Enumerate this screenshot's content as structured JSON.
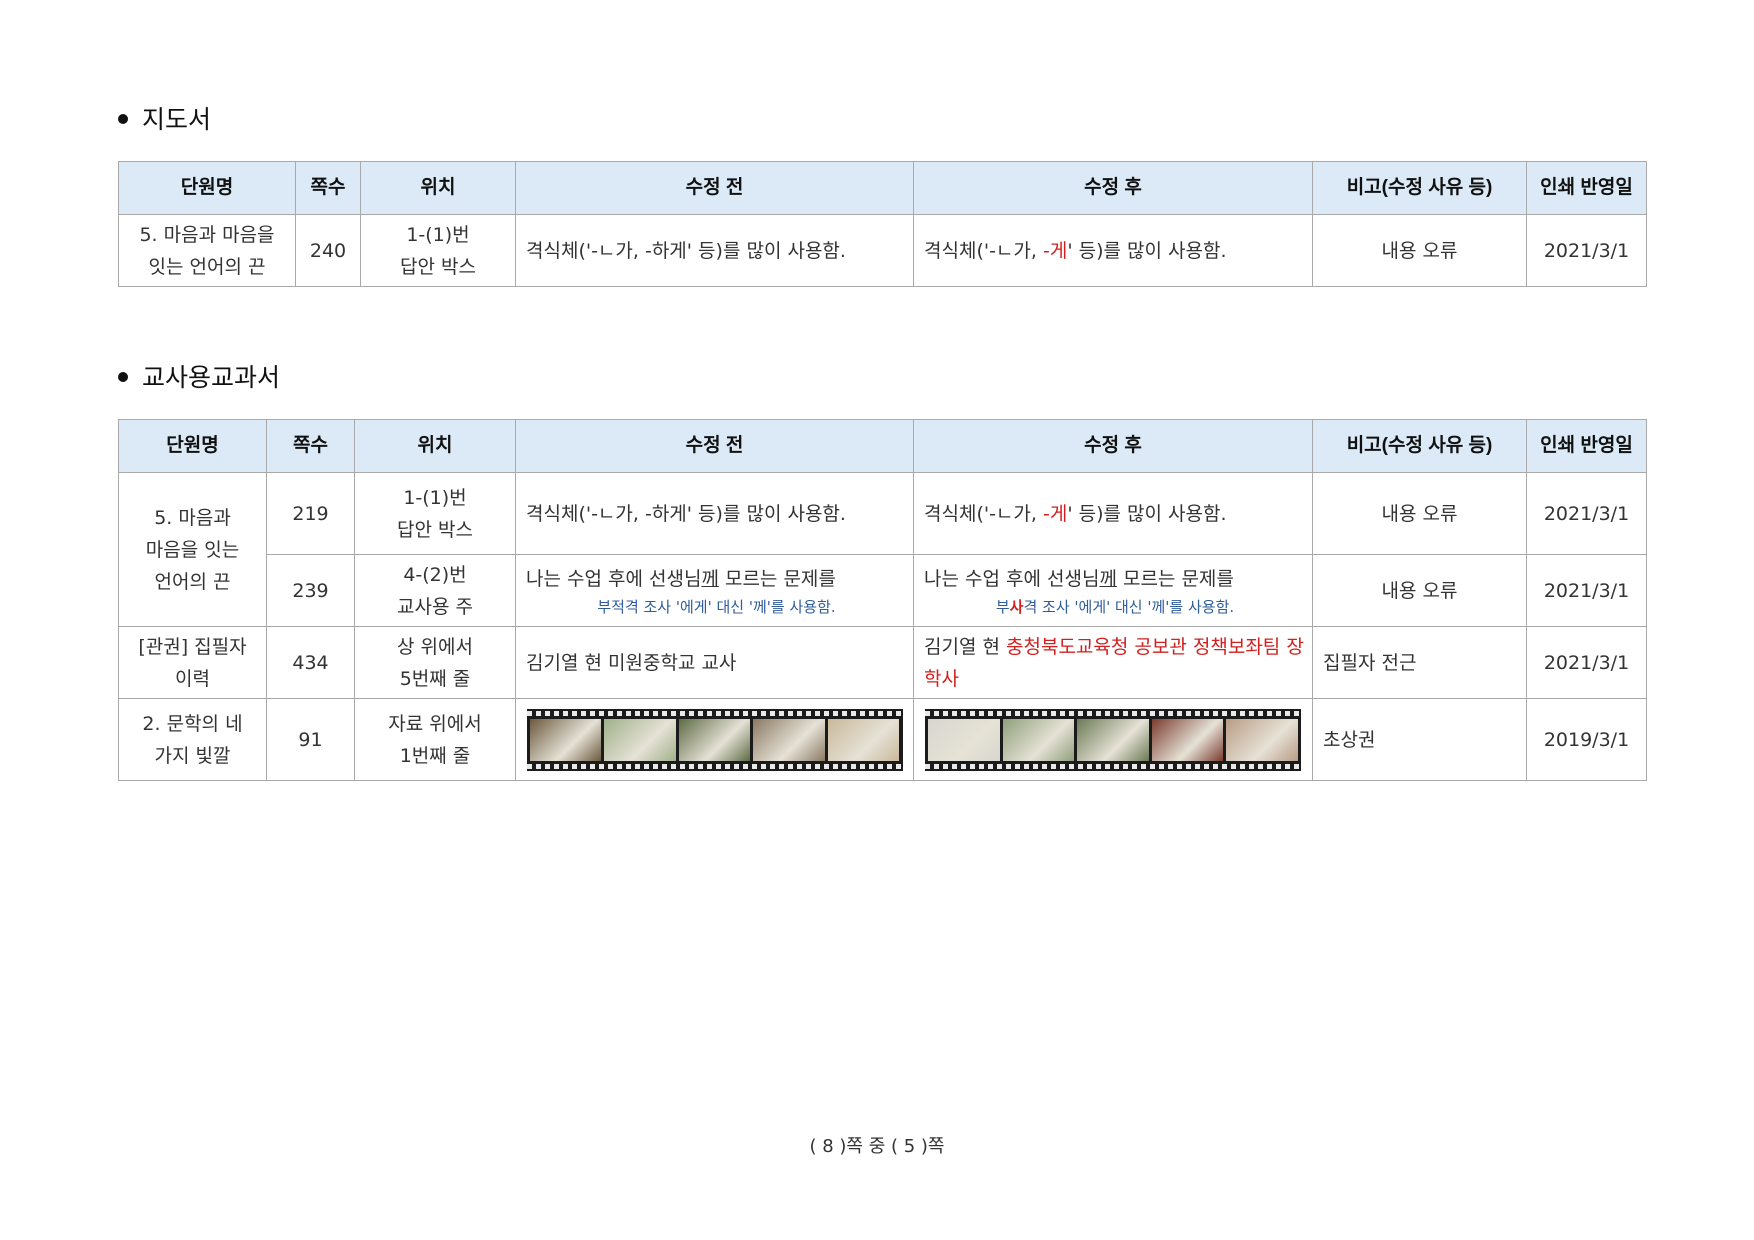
{
  "sections": [
    {
      "title": "지도서",
      "headers": [
        "단원명",
        "쪽수",
        "위치",
        "수정 전",
        "수정 후",
        "비고(수정 사유 등)",
        "인쇄 반영일"
      ],
      "rows": [
        {
          "unit_line1": "5. 마음과 마음을",
          "unit_line2": "잇는 언어의 끈",
          "page": "240",
          "loc_line1": "1-(1)번",
          "loc_line2": "답안 박스",
          "before": "격식체('-ㄴ가, -하게' 등)를 많이 사용함.",
          "after_pre": "격식체('-ㄴ가, ",
          "after_red": "-게",
          "after_post": "' 등)를 많이 사용함.",
          "note": "내용 오류",
          "date": "2021/3/1"
        }
      ]
    },
    {
      "title": "교사용교과서",
      "headers": [
        "단원명",
        "쪽수",
        "위치",
        "수정 전",
        "수정 후",
        "비고(수정 사유 등)",
        "인쇄 반영일"
      ],
      "merged_unit": {
        "line1": "5. 마음과",
        "line2": "마음을 잇는",
        "line3": "언어의 끈"
      },
      "rows": [
        {
          "page": "219",
          "loc_line1": "1-(1)번",
          "loc_line2": "답안 박스",
          "before": "격식체('-ㄴ가, -하게' 등)를 많이 사용함.",
          "after_pre": "격식체('-ㄴ가, ",
          "after_red": "-게",
          "after_post": "' 등)를 많이 사용함.",
          "note": "내용 오류",
          "date": "2021/3/1"
        },
        {
          "page": "239",
          "loc_line1": "4-(2)번",
          "loc_line2": "교사용 주",
          "before_main_pre": "나는 수업 후에 선생님",
          "before_main_u": "께",
          "before_main_post": " 모르는 문제를",
          "before_note": "부적격 조사 '에게' 대신 '께'를 사용함.",
          "after_main_pre": "나는 수업 후에 선생님",
          "after_main_u": "께",
          "after_main_post": " 모르는 문제를",
          "after_note_pre": "부",
          "after_note_red": "사",
          "after_note_post": "격 조사 '에게' 대신 '께'를 사용함.",
          "note": "내용 오류",
          "date": "2021/3/1"
        },
        {
          "unit_line1": "[관권] 집필자",
          "unit_line2": "이력",
          "page": "434",
          "loc_line1": "상 위에서",
          "loc_line2": "5번째 줄",
          "before": "김기열 현 미원중학교 교사",
          "after_pre": "김기열 현 ",
          "after_red": "충청북도교육청 공보관 정책보좌팀 장학사",
          "note": "집필자 전근",
          "date": "2021/3/1"
        },
        {
          "unit_line1": "2. 문학의 네",
          "unit_line2": "가지 빛깔",
          "page": "91",
          "loc_line1": "자료 위에서",
          "loc_line2": "1번째 줄",
          "note": "초상권",
          "date": "2019/3/1",
          "film_before_colors": [
            "#6b5a3e",
            "#9fb08a",
            "#5d6b45",
            "#8a7a64",
            "#c9b89a"
          ],
          "film_after_colors": [
            "#d8d6cf",
            "#8fa07c",
            "#6b7a55",
            "#7a3b2e",
            "#b99c86"
          ]
        }
      ]
    }
  ],
  "footer": {
    "text": "( 8 )쪽 중 ( 5 )쪽"
  }
}
